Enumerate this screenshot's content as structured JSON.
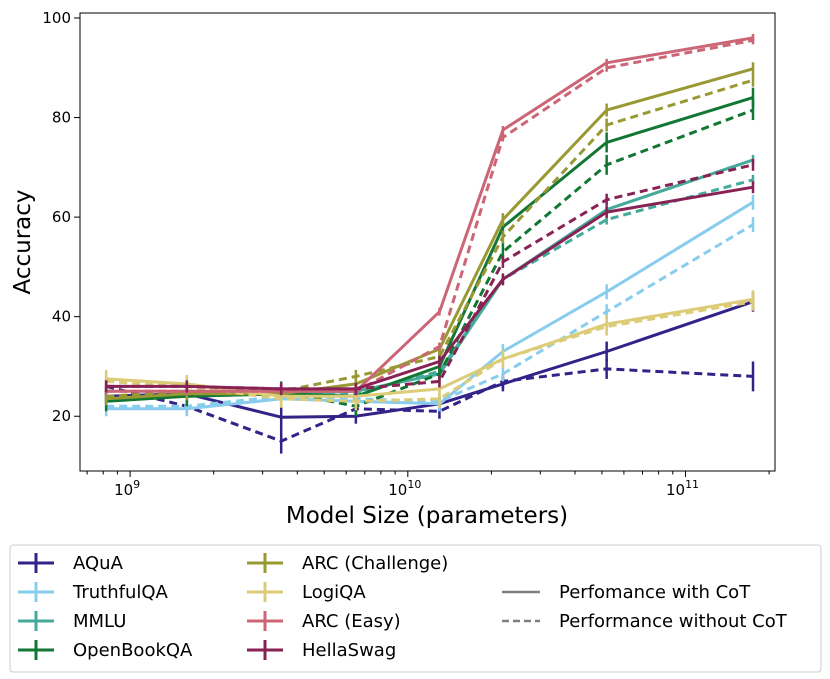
{
  "chart_data": {
    "type": "line",
    "title": "",
    "xlabel": "Model Size (parameters)",
    "ylabel": "Accuracy",
    "x_scale": "log",
    "xlim": [
      660000000.0,
      210000000000.0
    ],
    "ylim": [
      9,
      101
    ],
    "x": [
      820000000.0,
      1600000000.0,
      3500000000.0,
      6500000000.0,
      13000000000.0,
      22000000000.0,
      52000000000.0,
      175000000000.0
    ],
    "x_major_ticks": [
      {
        "value": 1000000000.0,
        "base": "10",
        "exp": "9"
      },
      {
        "value": 10000000000.0,
        "base": "10",
        "exp": "10"
      },
      {
        "value": 100000000000.0,
        "base": "10",
        "exp": "11"
      }
    ],
    "y_ticks": [
      20,
      40,
      60,
      80,
      100
    ],
    "grid": false,
    "legend_position": "bottom-outside",
    "series": [
      {
        "name": "AQuA",
        "color": "#332288",
        "with_cot": [
          24.0,
          24.5,
          19.8,
          20.0,
          22.5,
          26.5,
          33.0,
          43.0
        ],
        "without_cot": [
          26.0,
          22.0,
          15.0,
          21.5,
          21.0,
          27.0,
          29.5,
          28.0
        ],
        "err_with": [
          1.5,
          1.5,
          2.5,
          1.5,
          1.5,
          1.5,
          2.0,
          2.0
        ],
        "err_without": [
          1.5,
          1.5,
          2.5,
          1.5,
          1.5,
          1.5,
          2.0,
          3.0
        ]
      },
      {
        "name": "TruthfulQA",
        "color": "#88CCEE",
        "with_cot": [
          21.5,
          21.5,
          23.5,
          23.0,
          22.5,
          33.0,
          45.0,
          63.0
        ],
        "without_cot": [
          22.0,
          22.0,
          24.0,
          23.5,
          23.0,
          28.5,
          41.0,
          58.5
        ],
        "err_with": [
          1.5,
          1.5,
          1.5,
          1.5,
          1.5,
          1.5,
          1.5,
          1.5
        ],
        "err_without": [
          1.5,
          1.5,
          1.5,
          1.5,
          1.5,
          1.5,
          1.5,
          1.5
        ]
      },
      {
        "name": "MMLU",
        "color": "#44AA99",
        "with_cot": [
          23.5,
          24.0,
          24.5,
          25.0,
          28.5,
          47.5,
          61.5,
          71.5
        ],
        "without_cot": [
          24.0,
          24.5,
          24.5,
          24.5,
          29.0,
          47.5,
          59.5,
          67.5
        ],
        "err_with": [
          1.0,
          1.0,
          1.0,
          1.0,
          1.0,
          1.0,
          1.0,
          1.0
        ],
        "err_without": [
          1.0,
          1.0,
          1.0,
          1.0,
          1.0,
          1.0,
          1.0,
          1.0
        ]
      },
      {
        "name": "OpenBookQA",
        "color": "#117733",
        "with_cot": [
          23.0,
          24.0,
          24.5,
          24.0,
          30.0,
          58.0,
          75.0,
          84.0
        ],
        "without_cot": [
          24.0,
          24.5,
          25.0,
          22.0,
          28.5,
          53.0,
          70.5,
          81.5
        ],
        "err_with": [
          2.0,
          2.0,
          2.0,
          2.0,
          2.0,
          2.0,
          2.0,
          2.0
        ],
        "err_without": [
          2.0,
          2.0,
          2.0,
          2.0,
          2.0,
          2.0,
          2.0,
          2.0
        ]
      },
      {
        "name": "ARC (Challenge)",
        "color": "#999933",
        "with_cot": [
          23.5,
          24.5,
          24.5,
          26.5,
          33.5,
          59.5,
          81.5,
          89.8
        ],
        "without_cot": [
          24.0,
          25.0,
          25.0,
          28.0,
          32.0,
          56.0,
          78.5,
          87.5
        ],
        "err_with": [
          1.3,
          1.3,
          1.3,
          1.3,
          1.3,
          1.3,
          1.3,
          1.3
        ],
        "err_without": [
          1.3,
          1.3,
          1.3,
          1.3,
          1.3,
          1.3,
          1.3,
          1.3
        ]
      },
      {
        "name": "LogiQA",
        "color": "#DDCC77",
        "with_cot": [
          27.5,
          26.5,
          24.0,
          24.0,
          25.5,
          31.5,
          38.5,
          43.5
        ],
        "without_cot": [
          27.0,
          26.0,
          23.5,
          23.0,
          23.5,
          31.5,
          38.0,
          43.0
        ],
        "err_with": [
          1.8,
          1.8,
          1.8,
          1.8,
          1.8,
          1.8,
          1.8,
          1.8
        ],
        "err_without": [
          1.8,
          1.8,
          1.8,
          1.8,
          1.8,
          1.8,
          1.8,
          1.8
        ]
      },
      {
        "name": "ARC (Easy)",
        "color": "#CC6677",
        "with_cot": [
          25.0,
          25.0,
          25.0,
          25.0,
          41.0,
          77.5,
          91.0,
          96.0
        ],
        "without_cot": [
          25.0,
          25.0,
          25.0,
          25.0,
          34.0,
          76.0,
          90.0,
          95.5
        ],
        "err_with": [
          0.8,
          0.8,
          0.8,
          0.8,
          0.8,
          0.8,
          0.8,
          0.8
        ],
        "err_without": [
          0.8,
          0.8,
          0.8,
          0.8,
          0.8,
          0.8,
          0.8,
          0.8
        ]
      },
      {
        "name": "HellaSwag",
        "color": "#882255",
        "with_cot": [
          26.0,
          26.0,
          25.5,
          25.5,
          31.0,
          47.5,
          61.0,
          66.0
        ],
        "without_cot": [
          26.0,
          26.0,
          25.5,
          25.5,
          27.0,
          51.0,
          63.5,
          70.5
        ],
        "err_with": [
          1.2,
          1.2,
          1.2,
          1.2,
          1.2,
          1.2,
          1.2,
          1.2
        ],
        "err_without": [
          1.2,
          1.2,
          1.2,
          1.2,
          1.2,
          1.2,
          1.2,
          1.2
        ]
      }
    ],
    "style_legend": [
      {
        "label": "Perfomance with CoT",
        "dash": "solid",
        "color": "#808080"
      },
      {
        "label": "Performance without CoT",
        "dash": "dashed",
        "color": "#808080"
      }
    ]
  }
}
